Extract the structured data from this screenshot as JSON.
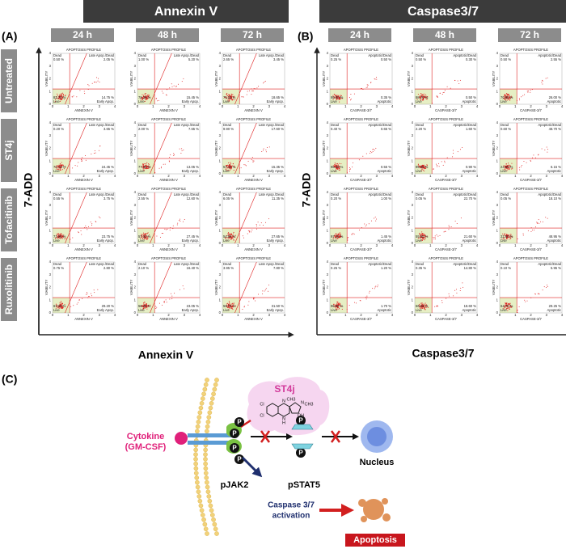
{
  "panel_a": {
    "label": "(A)",
    "header": "Annexin V",
    "times": [
      "24 h",
      "48 h",
      "72 h"
    ],
    "rows": [
      "Untreated",
      "ST4j",
      "Tofacitinib",
      "Ruxolitinib"
    ],
    "y_label": "7-ADD",
    "x_label": "Annexin V",
    "plot_title": "APOPTOSIS PROFILE",
    "plot_x_label": "ANNEXIN V",
    "plot_y_label": "VIABILITY",
    "quadrant_names": [
      "Dead",
      "Late Apop./Dead",
      "Live",
      "Early Apop."
    ],
    "ticks": [
      0,
      1,
      2,
      3,
      4
    ],
    "plots": [
      [
        [
          "0.50 %",
          "2.05 %",
          "82.70 %",
          "14.75 %"
        ],
        [
          "1.00 %",
          "5.20 %",
          "78.35 %",
          "15.45 %"
        ],
        [
          "2.65 %",
          "3.45 %",
          "75.25 %",
          "18.65 %"
        ]
      ],
      [
        [
          "0.20 %",
          "3.65 %",
          "71.70 %",
          "24.45 %"
        ],
        [
          "2.00 %",
          "7.65 %",
          "77.30 %",
          "13.05 %"
        ],
        [
          "9.90 %",
          "17.60 %",
          "57.15 %",
          "15.35 %"
        ]
      ],
      [
        [
          "0.55 %",
          "3.75 %",
          "71.95 %",
          "23.75 %"
        ],
        [
          "2.55 %",
          "12.60 %",
          "57.40 %",
          "27.45 %"
        ],
        [
          "6.05 %",
          "11.35 %",
          "54.95 %",
          "27.65 %"
        ]
      ],
      [
        [
          "0.75 %",
          "2.80 %",
          "67.25 %",
          "29.20 %"
        ],
        [
          "2.10 %",
          "16.40 %",
          "58.45 %",
          "23.05 %"
        ],
        [
          "3.95 %",
          "7.80 %",
          "56.75 %",
          "31.50 %"
        ]
      ]
    ]
  },
  "panel_b": {
    "label": "(B)",
    "header": "Caspase3/7",
    "times": [
      "24 h",
      "48 h",
      "72 h"
    ],
    "y_label": "7-ADD",
    "x_label": "Caspase3/7",
    "plot_title": "APOPTOSIS PROFILE",
    "plot_x_label": "CASPASE-3/7",
    "plot_y_label": "VIABILITY",
    "quadrant_names": [
      "Dead",
      "Apoptotic/Dead",
      "Live",
      "Apoptotic"
    ],
    "ticks": [
      0,
      1,
      2,
      3,
      4
    ],
    "plots": [
      [
        [
          "0.25 %",
          "0.50 %",
          "98.90 %",
          "0.35 %"
        ],
        [
          "0.50 %",
          "0.30 %",
          "98.70 %",
          "0.50 %"
        ],
        [
          "0.50 %",
          "2.55 %",
          "70.95 %",
          "26.00 %"
        ]
      ],
      [
        [
          "0.40 %",
          "0.65 %",
          "98.40 %",
          "0.55 %"
        ],
        [
          "2.20 %",
          "1.60 %",
          "95.30 %",
          "0.90 %"
        ],
        [
          "0.60 %",
          "48.70 %",
          "24.55 %",
          "6.15 %"
        ]
      ],
      [
        [
          "0.20 %",
          "1.00 %",
          "97.35 %",
          "1.45 %"
        ],
        [
          "0.05 %",
          "22.70 %",
          "55.65 %",
          "21.60 %"
        ],
        [
          "0.05 %",
          "18.10 %",
          "32.90 %",
          "48.95 %"
        ]
      ],
      [
        [
          "0.25 %",
          "1.20 %",
          "96.85 %",
          "1.70 %"
        ],
        [
          "0.35 %",
          "14.80 %",
          "66.25 %",
          "18.60 %"
        ],
        [
          "0.10 %",
          "5.95 %",
          "64.70 %",
          "29.25 %"
        ]
      ]
    ]
  },
  "panel_c": {
    "label": "(C)",
    "inhibitor": "ST4j",
    "cytokine": [
      "Cytokine",
      "(GM-CSF)"
    ],
    "jak": "pJAK2",
    "stat": "pSTAT5",
    "nucleus": "Nucleus",
    "caspase": [
      "Caspase 3/7",
      "activation"
    ],
    "apoptosis": "Apoptosis",
    "phospho_label": "P",
    "structure_labels": [
      "Cl",
      "Cl",
      "N",
      "N",
      "H",
      "N",
      "OH",
      "CH3",
      "CH3"
    ]
  }
}
